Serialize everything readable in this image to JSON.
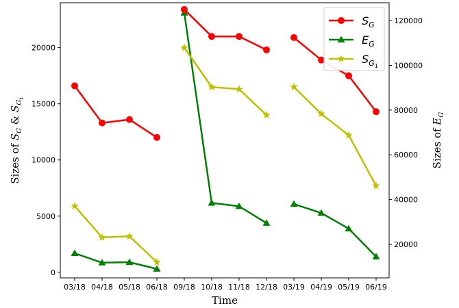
{
  "chart_data": {
    "type": "line",
    "categories": [
      "03/18",
      "04/18",
      "05/18",
      "06/18",
      "09/18",
      "10/18",
      "11/18",
      "12/18",
      "03/19",
      "04/19",
      "05/19",
      "06/19"
    ],
    "segments": [
      [
        0,
        3
      ],
      [
        4,
        7
      ],
      [
        8,
        11
      ]
    ],
    "xlabel": "Time",
    "ylabel_left": "Sizes of S_G & S_G1",
    "ylabel_right": "Sizes of E_G",
    "ylim_left": [
      -500,
      24000
    ],
    "yticks_left": [
      0,
      5000,
      10000,
      15000,
      20000
    ],
    "ylim_right": [
      5000,
      128000
    ],
    "yticks_right": [
      20000,
      40000,
      60000,
      80000,
      100000,
      120000
    ],
    "legend_position": "top-right",
    "grid": false,
    "series": [
      {
        "key": "sg",
        "name": "S_G",
        "axis": "left",
        "color": "#ff0000",
        "marker": "circle",
        "values": [
          16600,
          13300,
          13600,
          12000,
          23400,
          21000,
          21000,
          19800,
          20900,
          18900,
          17500,
          14300
        ]
      },
      {
        "key": "eg",
        "name": "E_G",
        "axis": "right",
        "color": "#008000",
        "marker": "triangle",
        "values": [
          16000,
          11800,
          12000,
          9000,
          123500,
          38500,
          37000,
          29500,
          38000,
          34000,
          27000,
          14500
        ]
      },
      {
        "key": "sg1",
        "name": "S_G1",
        "axis": "left",
        "color": "#bfbf00",
        "marker": "star",
        "values": [
          5900,
          3100,
          3200,
          900,
          20000,
          16500,
          16300,
          14000,
          16500,
          14100,
          12200,
          7700
        ]
      }
    ]
  }
}
